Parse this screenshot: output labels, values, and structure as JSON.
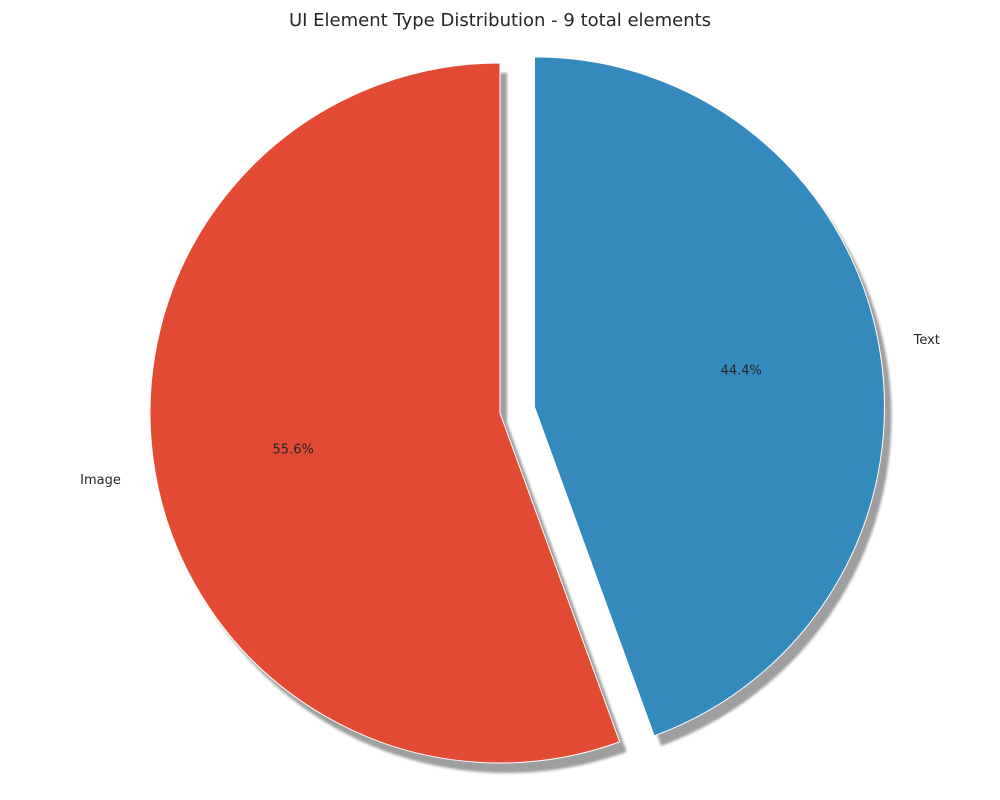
{
  "chart_data": {
    "type": "pie",
    "title": "UI Element Type Distribution - 9 total elements",
    "categories": [
      "Image",
      "Text"
    ],
    "values": [
      5,
      4
    ],
    "percent_labels": [
      "55.6%",
      "44.4%"
    ],
    "colors": [
      "#E24A33",
      "#348ABD"
    ],
    "shadow": true,
    "explode": [
      0,
      0.1
    ],
    "start_angle_deg": 90,
    "direction": "counterclockwise"
  }
}
